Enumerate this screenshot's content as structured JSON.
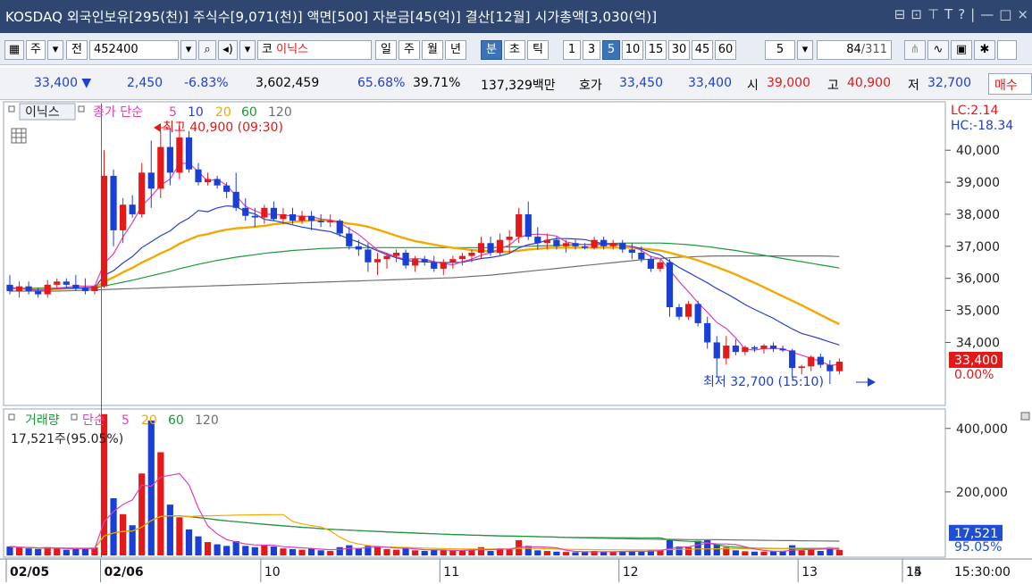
{
  "titlebar": {
    "text": "KOSDAQ 외국인보유[295(천)] 주식수[9,071(천)] 액면[500] 자본금[45(억)] 결산[12월] 시가총액[3,030(억)]",
    "icons": [
      "restore-icon",
      "copy-icon",
      "pin-icon",
      "text-icon",
      "help-icon",
      "minimize-icon",
      "maximize-icon",
      "close-icon"
    ],
    "glyphs": [
      "⊟",
      "⊡",
      "📌",
      "T",
      "?",
      "|",
      "—",
      "□",
      "×"
    ]
  },
  "toolbar": {
    "market": "주",
    "prev": "전",
    "code": "452400",
    "market_tag": "코",
    "name": "이닉스",
    "periods": [
      "일",
      "주",
      "월",
      "년",
      "분",
      "초",
      "틱"
    ],
    "selected_period": "분",
    "intervals": [
      "1",
      "3",
      "5",
      "10",
      "15",
      "30",
      "45",
      "60"
    ],
    "selected_interval": "5",
    "interval_value": "5",
    "page_current": "84",
    "page_total": "/311"
  },
  "quote": {
    "price": "33,400 ▼",
    "change": "2,450",
    "change_pct": "-6.83%",
    "volume": "3,602,459",
    "pct1": "65.68%",
    "pct2": "39.71%",
    "amount": "137,329백만",
    "hoga_label": "호가",
    "ask": "33,450",
    "bid": "33,400",
    "open_label": "시",
    "open": "39,000",
    "high_label": "고",
    "high": "40,900",
    "low_label": "저",
    "low": "32,700",
    "trade_button": "매수"
  },
  "price_panel": {
    "stock_label": "이닉스",
    "legend_prefix": "종가 단순",
    "ma_labels": [
      "5",
      "10",
      "20",
      "60",
      "120"
    ],
    "ma_colors": [
      "#e040b8",
      "#2a3fc8",
      "#f2a900",
      "#1a9a3a",
      "#707070"
    ],
    "high_annotation": "최고 40,900 (09:30)",
    "low_annotation": "최저 32,700 (15:10)",
    "lc": "LC:2.14",
    "hc": "HC:-18.34",
    "last_price": "33,400",
    "last_pct": "0.00%"
  },
  "volume_panel": {
    "label": "거래량",
    "legend_prefix": "단순",
    "ma_labels": [
      "5",
      "20",
      "60",
      "120"
    ],
    "current": "17,521주(95.05%)",
    "last_vol": "17,521",
    "last_pct": "95.05%"
  },
  "xaxis": {
    "labels": [
      "02/05",
      "02/06",
      "10",
      "11",
      "12",
      "13",
      "14",
      "15"
    ],
    "time": "15:30:00"
  },
  "chart_data": {
    "type": "candlestick",
    "price_axis": {
      "ticks": [
        35000,
        36000,
        37000,
        38000,
        39000,
        40000,
        34000
      ],
      "range": [
        32200,
        41400
      ]
    },
    "volume_axis": {
      "ticks": [
        200000,
        400000
      ],
      "range": [
        0,
        450000
      ]
    },
    "colors": {
      "up": "#e61919",
      "down": "#1a3fd6"
    },
    "candles": [
      [
        35800,
        36100,
        35500,
        35600
      ],
      [
        35600,
        35900,
        35400,
        35750
      ],
      [
        35750,
        35900,
        35500,
        35600
      ],
      [
        35600,
        35700,
        35400,
        35500
      ],
      [
        35500,
        35950,
        35400,
        35800
      ],
      [
        35800,
        36000,
        35700,
        35900
      ],
      [
        35900,
        36000,
        35700,
        35800
      ],
      [
        35800,
        36100,
        35600,
        35700
      ],
      [
        35700,
        36000,
        35500,
        35600
      ],
      [
        35600,
        35800,
        35500,
        35750
      ],
      [
        35750,
        40000,
        35700,
        39200
      ],
      [
        39200,
        39400,
        37000,
        37500
      ],
      [
        37500,
        38500,
        37100,
        38300
      ],
      [
        38300,
        38600,
        37900,
        38000
      ],
      [
        38000,
        39600,
        37900,
        39300
      ],
      [
        39300,
        40300,
        38200,
        38800
      ],
      [
        38800,
        40600,
        38500,
        40100
      ],
      [
        40100,
        40700,
        38900,
        39300
      ],
      [
        39300,
        40900,
        39100,
        40400
      ],
      [
        40400,
        40600,
        39300,
        39400
      ],
      [
        39400,
        39600,
        38900,
        39000
      ],
      [
        39000,
        39300,
        38900,
        39100
      ],
      [
        39100,
        39200,
        38800,
        38900
      ],
      [
        38900,
        39000,
        38500,
        38700
      ],
      [
        38700,
        39300,
        38100,
        38200
      ],
      [
        38200,
        38500,
        37800,
        37950
      ],
      [
        37950,
        38200,
        37600,
        37900
      ],
      [
        37900,
        38300,
        37700,
        38200
      ],
      [
        38200,
        38400,
        37800,
        37850
      ],
      [
        37850,
        38200,
        37700,
        38000
      ],
      [
        38000,
        38200,
        37700,
        37800
      ],
      [
        37800,
        38100,
        37700,
        37950
      ],
      [
        37950,
        38100,
        37500,
        37800
      ],
      [
        37800,
        38000,
        37600,
        37750
      ],
      [
        37750,
        38000,
        37600,
        37800
      ],
      [
        37800,
        37850,
        37300,
        37400
      ],
      [
        37400,
        37600,
        36900,
        37000
      ],
      [
        37000,
        37200,
        36700,
        36900
      ],
      [
        36900,
        37100,
        36200,
        36500
      ],
      [
        36500,
        36800,
        36100,
        36600
      ],
      [
        36600,
        36800,
        36300,
        36700
      ],
      [
        36700,
        36900,
        36500,
        36800
      ],
      [
        36800,
        36900,
        36300,
        36400
      ],
      [
        36400,
        36700,
        36200,
        36600
      ],
      [
        36600,
        36700,
        36400,
        36500
      ],
      [
        36500,
        36700,
        36200,
        36300
      ],
      [
        36300,
        36600,
        36100,
        36500
      ],
      [
        36500,
        36700,
        36300,
        36600
      ],
      [
        36600,
        36800,
        36400,
        36700
      ],
      [
        36700,
        36900,
        36500,
        36800
      ],
      [
        36800,
        37300,
        36600,
        37100
      ],
      [
        37100,
        37300,
        36700,
        36800
      ],
      [
        36800,
        37400,
        36700,
        37200
      ],
      [
        37200,
        37500,
        36800,
        37300
      ],
      [
        37300,
        38200,
        37100,
        38000
      ],
      [
        38000,
        38400,
        37200,
        37300
      ],
      [
        37300,
        37600,
        36900,
        37100
      ],
      [
        37100,
        37400,
        36900,
        37200
      ],
      [
        37200,
        37300,
        36900,
        37000
      ],
      [
        37000,
        37200,
        36800,
        37100
      ],
      [
        37100,
        37200,
        36900,
        37000
      ],
      [
        37000,
        37100,
        36900,
        36950
      ],
      [
        36950,
        37300,
        36900,
        37200
      ],
      [
        37200,
        37300,
        36900,
        37000
      ],
      [
        37000,
        37200,
        36900,
        37100
      ],
      [
        37100,
        37200,
        36800,
        36900
      ],
      [
        36900,
        37100,
        36600,
        36800
      ],
      [
        36800,
        37000,
        36500,
        36600
      ],
      [
        36600,
        36700,
        36200,
        36300
      ],
      [
        36300,
        36600,
        36200,
        36500
      ],
      [
        36500,
        36600,
        34800,
        35100
      ],
      [
        35100,
        35200,
        34700,
        34800
      ],
      [
        34800,
        35300,
        34700,
        35200
      ],
      [
        35200,
        35300,
        34500,
        34600
      ],
      [
        34600,
        34800,
        33800,
        34000
      ],
      [
        34000,
        34200,
        32900,
        33500
      ],
      [
        33500,
        34200,
        33300,
        33900
      ],
      [
        33900,
        34100,
        33600,
        33700
      ],
      [
        33700,
        33900,
        33600,
        33850
      ],
      [
        33850,
        33900,
        33700,
        33800
      ],
      [
        33800,
        33950,
        33650,
        33900
      ],
      [
        33900,
        34000,
        33700,
        33800
      ],
      [
        33800,
        33900,
        33700,
        33750
      ],
      [
        33750,
        33800,
        32900,
        33200
      ],
      [
        33200,
        33300,
        33000,
        33250
      ],
      [
        33250,
        33600,
        33100,
        33550
      ],
      [
        33550,
        33650,
        33200,
        33300
      ],
      [
        33300,
        33450,
        32700,
        33100
      ],
      [
        33100,
        33500,
        33000,
        33400
      ]
    ],
    "volume": [
      28000,
      24000,
      22000,
      20000,
      26000,
      22000,
      18000,
      20000,
      22000,
      25000,
      445000,
      180000,
      130000,
      95000,
      258000,
      425000,
      325000,
      160000,
      120000,
      82000,
      60000,
      42000,
      35000,
      30000,
      45000,
      30000,
      26000,
      32000,
      28000,
      22000,
      20000,
      18000,
      22000,
      16000,
      14000,
      26000,
      32000,
      22000,
      30000,
      26000,
      20000,
      18000,
      22000,
      16000,
      14000,
      18000,
      16000,
      14000,
      17000,
      19000,
      26000,
      14000,
      22000,
      20000,
      48000,
      30000,
      16000,
      14000,
      12000,
      11000,
      10000,
      10000,
      14000,
      12000,
      12000,
      14000,
      12000,
      14000,
      16000,
      18000,
      48000,
      28000,
      26000,
      46000,
      48000,
      34000,
      26000,
      16000,
      13000,
      12000,
      12000,
      13000,
      14000,
      32000,
      16000,
      22000,
      14000,
      26000,
      17521
    ],
    "ma_price": {
      "5": [
        35700,
        35680,
        35650,
        35620,
        35650,
        35700,
        35720,
        35760,
        35760,
        35760,
        36460,
        36770,
        37290,
        37740,
        38260,
        38560,
        38900,
        39100,
        39580,
        39600,
        39320,
        39040,
        39100,
        38900,
        38580,
        38250,
        38110,
        38000,
        38000,
        37980,
        37950,
        37940,
        37930,
        37850,
        37820,
        37730,
        37550,
        37370,
        37130,
        36880,
        36780,
        36670,
        36590,
        36620,
        36600,
        36520,
        36460,
        36420,
        36520,
        36600,
        36720,
        36800,
        36930,
        37040,
        37280,
        37360,
        37380,
        37360,
        37320,
        37140,
        37080,
        37050,
        37050,
        37050,
        37050,
        37030,
        36990,
        36870,
        36680,
        36620,
        36260,
        35900,
        35580,
        35240,
        34940,
        34620,
        34440,
        34140,
        33790,
        33760,
        33810,
        33810,
        33810,
        33690,
        33600,
        33500,
        33410,
        33280,
        33320
      ],
      "10": [
        35700,
        35690,
        35660,
        35630,
        35650,
        35680,
        35690,
        35700,
        35710,
        35710,
        36090,
        36240,
        36480,
        36680,
        36960,
        37140,
        37330,
        37480,
        37720,
        37880,
        38120,
        38080,
        38200,
        38260,
        38240,
        38080,
        38010,
        37840,
        37800,
        37740,
        37670,
        37600,
        37550,
        37500,
        37460,
        37350,
        37230,
        37130,
        36990,
        36860,
        36740,
        36640,
        36560,
        36530,
        36510,
        36510,
        36490,
        36500,
        36500,
        36560,
        36620,
        36650,
        36700,
        36780,
        36950,
        37050,
        37100,
        37190,
        37240,
        37240,
        37230,
        37210,
        37140,
        37080,
        37080,
        37030,
        37000,
        36920,
        36820,
        36730,
        36530,
        36340,
        36180,
        36020,
        35860,
        35680,
        35530,
        35360,
        35180,
        35030,
        34890,
        34750,
        34580,
        34420,
        34280,
        34200,
        34110,
        34010,
        33920
      ],
      "20": [
        35700,
        35690,
        35680,
        35660,
        35660,
        35670,
        35680,
        35690,
        35700,
        35700,
        35890,
        36030,
        36190,
        36330,
        36490,
        36630,
        36780,
        36910,
        37080,
        37210,
        37330,
        37380,
        37460,
        37520,
        37560,
        37580,
        37610,
        37640,
        37690,
        37720,
        37760,
        37790,
        37800,
        37820,
        37800,
        37760,
        37710,
        37670,
        37610,
        37520,
        37430,
        37330,
        37240,
        37160,
        37110,
        37050,
        37000,
        36950,
        36920,
        36880,
        36860,
        36840,
        36830,
        36830,
        36860,
        36900,
        36920,
        36950,
        36960,
        36960,
        36960,
        36960,
        36960,
        36960,
        36960,
        36960,
        36960,
        36930,
        36900,
        36870,
        36800,
        36720,
        36650,
        36560,
        36460,
        36350,
        36240,
        36120,
        35990,
        35860,
        35720,
        35580,
        35440,
        35300,
        35160,
        35010,
        34860,
        34710,
        34570
      ],
      "60": [
        35700,
        35700,
        35700,
        35700,
        35700,
        35700,
        35700,
        35700,
        35700,
        35700,
        35760,
        35820,
        35880,
        35940,
        36010,
        36080,
        36150,
        36220,
        36300,
        36370,
        36440,
        36500,
        36560,
        36610,
        36660,
        36700,
        36740,
        36780,
        36810,
        36840,
        36870,
        36890,
        36910,
        36930,
        36940,
        36950,
        36960,
        36960,
        36960,
        36960,
        36960,
        36960,
        36960,
        36960,
        36960,
        36960,
        36960,
        36960,
        36960,
        36960,
        36960,
        36960,
        36970,
        36980,
        36990,
        37000,
        37010,
        37020,
        37030,
        37040,
        37050,
        37060,
        37070,
        37080,
        37090,
        37100,
        37100,
        37100,
        37100,
        37100,
        37090,
        37070,
        37050,
        37020,
        36990,
        36950,
        36910,
        36870,
        36820,
        36770,
        36720,
        36670,
        36620,
        36570,
        36520,
        36470,
        36420,
        36370,
        36320
      ],
      "120": [
        35600,
        35600,
        35600,
        35600,
        35600,
        35600,
        35610,
        35620,
        35630,
        35640,
        35650,
        35660,
        35670,
        35680,
        35690,
        35700,
        35710,
        35720,
        35730,
        35740,
        35750,
        35760,
        35770,
        35780,
        35790,
        35800,
        35810,
        35820,
        35830,
        35840,
        35850,
        35860,
        35870,
        35880,
        35890,
        35900,
        35910,
        35920,
        35930,
        35940,
        35950,
        35960,
        35970,
        35980,
        35990,
        36000,
        36010,
        36020,
        36040,
        36060,
        36080,
        36100,
        36130,
        36160,
        36190,
        36220,
        36250,
        36280,
        36310,
        36340,
        36370,
        36400,
        36430,
        36460,
        36490,
        36520,
        36550,
        36580,
        36600,
        36620,
        36640,
        36660,
        36670,
        36680,
        36690,
        36700,
        36700,
        36700,
        36700,
        36700,
        36700,
        36700,
        36700,
        36700,
        36700,
        36700,
        36700,
        36690,
        36680
      ]
    },
    "ma_volume_notes": "5/20/60/120-period simple moving averages of volume",
    "x_labels": [
      "02/05",
      "02/06",
      "10",
      "11",
      "12",
      "13",
      "14",
      "15"
    ],
    "x_label_index": [
      0,
      10,
      27,
      46,
      65,
      84,
      103,
      122
    ]
  }
}
